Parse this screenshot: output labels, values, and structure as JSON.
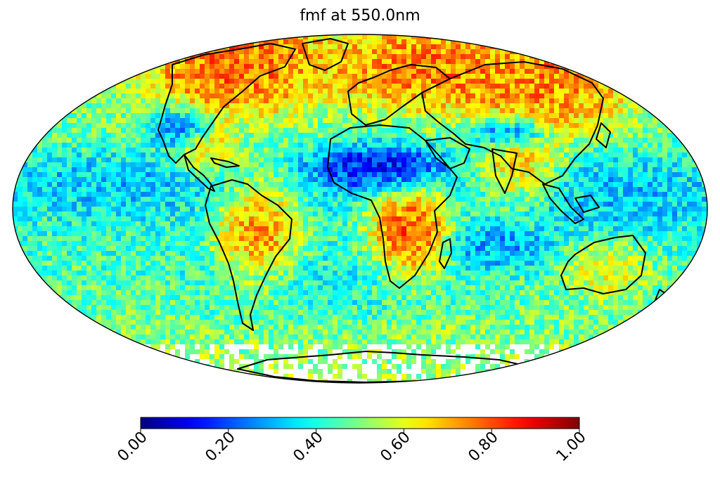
{
  "title": "fmf at 550.0nm",
  "colormap": "jet",
  "colorbar": {
    "min": 0,
    "max": 1,
    "orientation": "horizontal",
    "ticks": [
      {
        "value": 0.0,
        "label": "0.00"
      },
      {
        "value": 0.2,
        "label": "0.20"
      },
      {
        "value": 0.4,
        "label": "0.40"
      },
      {
        "value": 0.6,
        "label": "0.60"
      },
      {
        "value": 0.8,
        "label": "0.80"
      },
      {
        "value": 1.0,
        "label": "1.00"
      }
    ]
  },
  "map": {
    "projection": "Mollweide",
    "coastlines": true,
    "missing_data_color": "#ffffff"
  }
}
